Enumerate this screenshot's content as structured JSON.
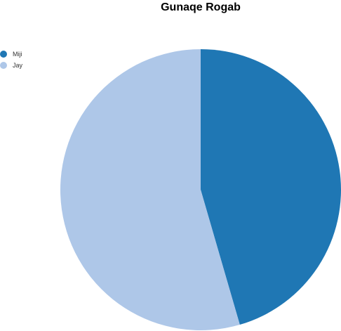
{
  "chart_data": {
    "type": "pie",
    "title": "Gunaqe Rogab",
    "legend_position": "top-left",
    "slices": [
      {
        "label": "Miji",
        "value": 45.5,
        "color": "#1f77b4"
      },
      {
        "label": "Jay",
        "value": 54.5,
        "color": "#aec7e8"
      }
    ]
  }
}
